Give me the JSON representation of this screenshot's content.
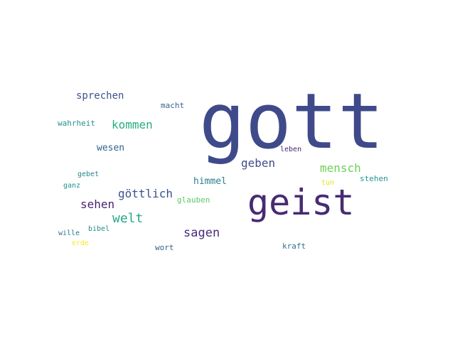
{
  "words": {
    "gott": {
      "text": "gott",
      "color": "#3f4a8a"
    },
    "geist": {
      "text": "geist",
      "color": "#482a73"
    },
    "mensch": {
      "text": "mensch",
      "color": "#6fcf57"
    },
    "sprechen": {
      "text": "sprechen",
      "color": "#3f528b"
    },
    "kommen": {
      "text": "kommen",
      "color": "#27ad81"
    },
    "wesen": {
      "text": "wesen",
      "color": "#33638d"
    },
    "geben": {
      "text": "geben",
      "color": "#3e4c8a"
    },
    "himmel": {
      "text": "himmel",
      "color": "#2c7f8e"
    },
    "goettlich": {
      "text": "göttlich",
      "color": "#3b528b"
    },
    "sehen": {
      "text": "sehen",
      "color": "#481d6f"
    },
    "welt": {
      "text": "welt",
      "color": "#26a784"
    },
    "sagen": {
      "text": "sagen",
      "color": "#472c7a"
    },
    "macht": {
      "text": "macht",
      "color": "#33638d"
    },
    "wahrheit": {
      "text": "wahrheit",
      "color": "#21918c"
    },
    "leben": {
      "text": "leben",
      "color": "#482475"
    },
    "stehen": {
      "text": "stehen",
      "color": "#1f968b"
    },
    "tun": {
      "text": "tun",
      "color": "#e3e418"
    },
    "glauben": {
      "text": "glauben",
      "color": "#5ec962"
    },
    "gebet": {
      "text": "gebet",
      "color": "#25858e"
    },
    "ganz": {
      "text": "ganz",
      "color": "#218e8d"
    },
    "bibel": {
      "text": "bibel",
      "color": "#228c8d"
    },
    "wille": {
      "text": "wille",
      "color": "#2a788e"
    },
    "erde": {
      "text": "erde",
      "color": "#fde725"
    },
    "wort": {
      "text": "wort",
      "color": "#35608d"
    },
    "kraft": {
      "text": "kraft",
      "color": "#2d708e"
    }
  }
}
